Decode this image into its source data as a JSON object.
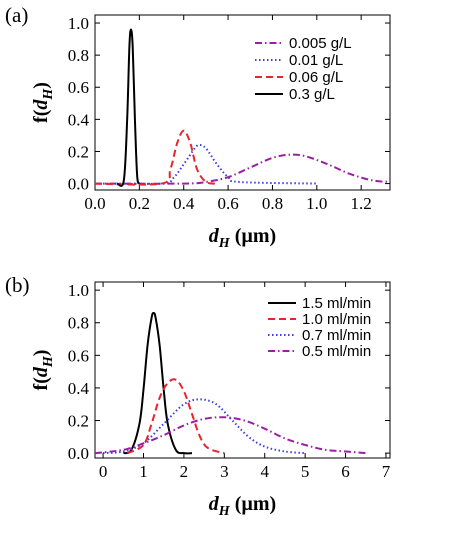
{
  "chart_data": [
    {
      "type": "line",
      "panel_label": "(a)",
      "xlabel": "d_H (µm)",
      "ylabel": "f(d_H)",
      "xlim": [
        0,
        1.33
      ],
      "ylim": [
        -0.04,
        1.05
      ],
      "xticks": [
        "0.0",
        "0.2",
        "0.4",
        "0.6",
        "0.8",
        "1.0",
        "1.2"
      ],
      "yticks": [
        "0.0",
        "0.2",
        "0.4",
        "0.6",
        "0.8",
        "1.0"
      ],
      "legend_position": "top-right",
      "grid": false,
      "series": [
        {
          "name": "0.005 g/L",
          "color": "#9b1fa6",
          "dash": "dash-dot",
          "x": [
            0.0,
            0.4,
            0.5,
            0.6,
            0.7,
            0.8,
            0.88,
            0.95,
            1.05,
            1.15,
            1.25,
            1.33
          ],
          "y": [
            0.0,
            0.0,
            0.01,
            0.04,
            0.1,
            0.16,
            0.18,
            0.17,
            0.12,
            0.06,
            0.02,
            0.01
          ]
        },
        {
          "name": "0.01 g/L",
          "color": "#3b3ee0",
          "dash": "dotted",
          "x": [
            0.0,
            0.3,
            0.35,
            0.4,
            0.45,
            0.47,
            0.5,
            0.55,
            0.6,
            0.65,
            1.0
          ],
          "y": [
            0.0,
            0.0,
            0.03,
            0.12,
            0.22,
            0.24,
            0.22,
            0.12,
            0.04,
            0.01,
            0.0
          ]
        },
        {
          "name": "0.06 g/L",
          "color": "#e8242c",
          "dash": "dashed",
          "x": [
            0.0,
            0.3,
            0.34,
            0.37,
            0.4,
            0.43,
            0.46,
            0.5,
            0.55
          ],
          "y": [
            0.0,
            0.0,
            0.09,
            0.25,
            0.33,
            0.25,
            0.09,
            0.01,
            0.0
          ]
        },
        {
          "name": "0.3 g/L",
          "color": "#000000",
          "dash": "solid",
          "x": [
            0.1,
            0.13,
            0.145,
            0.155,
            0.162,
            0.17,
            0.18,
            0.19,
            0.2
          ],
          "y": [
            0.0,
            0.02,
            0.4,
            0.85,
            0.96,
            0.85,
            0.4,
            0.05,
            0.0
          ]
        }
      ]
    },
    {
      "type": "line",
      "panel_label": "(b)",
      "xlabel": "d_H (µm)",
      "ylabel": "f(d_H)",
      "xlim": [
        -0.2,
        7.1
      ],
      "ylim": [
        -0.03,
        1.05
      ],
      "xticks": [
        "0",
        "1",
        "2",
        "3",
        "4",
        "5",
        "6",
        "7"
      ],
      "yticks": [
        "0.0",
        "0.2",
        "0.4",
        "0.6",
        "0.8",
        "1.0"
      ],
      "legend_position": "top-right",
      "grid": false,
      "series": [
        {
          "name": "1.5 ml/min",
          "color": "#000000",
          "dash": "solid",
          "x": [
            0.5,
            0.7,
            0.9,
            1.0,
            1.1,
            1.2,
            1.25,
            1.3,
            1.4,
            1.5,
            1.6,
            1.8,
            2.0,
            2.2
          ],
          "y": [
            0.0,
            0.02,
            0.18,
            0.39,
            0.66,
            0.83,
            0.86,
            0.83,
            0.66,
            0.39,
            0.18,
            0.02,
            0.0,
            0.0
          ]
        },
        {
          "name": "1.0 ml/min",
          "color": "#e8242c",
          "dash": "dashed",
          "x": [
            0.6,
            1.0,
            1.2,
            1.4,
            1.6,
            1.8,
            2.0,
            2.2,
            2.4,
            2.6,
            3.0
          ],
          "y": [
            0.0,
            0.05,
            0.18,
            0.34,
            0.43,
            0.45,
            0.38,
            0.24,
            0.1,
            0.03,
            0.0
          ]
        },
        {
          "name": "0.7 ml/min",
          "color": "#3b3ee0",
          "dash": "dotted",
          "x": [
            0.0,
            0.5,
            1.0,
            1.5,
            2.0,
            2.4,
            2.8,
            3.2,
            3.6,
            4.0,
            4.5,
            5.0
          ],
          "y": [
            0.0,
            0.01,
            0.06,
            0.18,
            0.3,
            0.33,
            0.3,
            0.2,
            0.1,
            0.04,
            0.01,
            0.0
          ]
        },
        {
          "name": "0.5 ml/min",
          "color": "#9b1fa6",
          "dash": "dash-dot",
          "x": [
            -0.2,
            0.5,
            1.0,
            1.5,
            2.0,
            2.5,
            3.0,
            3.5,
            4.0,
            4.5,
            5.0,
            5.5,
            6.0,
            6.5
          ],
          "y": [
            0.0,
            0.02,
            0.06,
            0.11,
            0.17,
            0.21,
            0.22,
            0.2,
            0.15,
            0.09,
            0.05,
            0.02,
            0.01,
            0.0
          ]
        }
      ]
    }
  ]
}
